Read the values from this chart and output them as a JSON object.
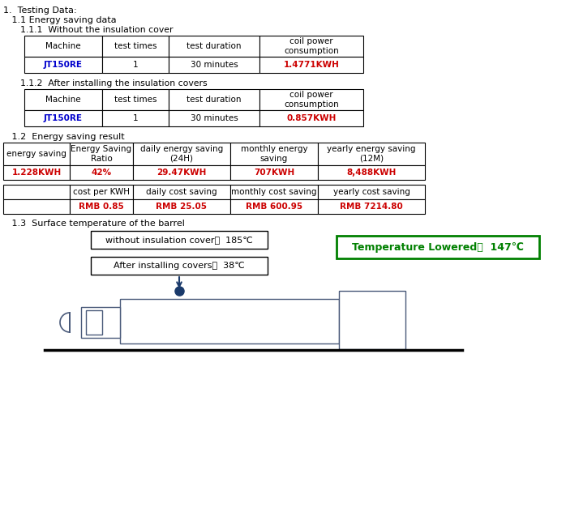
{
  "title_1": "1.  Testing Data:",
  "title_1_1": "   1.1 Energy saving data",
  "title_1_1_1": "      1.1.1  Without the insulation cover",
  "table1_headers": [
    "Machine",
    "test times",
    "test duration",
    "coil power\nconsumption"
  ],
  "table1_data": [
    [
      "JT150RE",
      "1",
      "30 minutes",
      "1.4771KWH"
    ]
  ],
  "table1_blue_cols": [
    0
  ],
  "table1_red_cols": [
    3
  ],
  "title_1_1_2": "      1.1.2  After installing the insulation covers",
  "table2_headers": [
    "Machine",
    "test times",
    "test duration",
    "coil power\nconsumption"
  ],
  "table2_data": [
    [
      "JT150RE",
      "1",
      "30 minutes",
      "0.857KWH"
    ]
  ],
  "table2_blue_cols": [
    0
  ],
  "table2_red_cols": [
    3
  ],
  "title_1_2": "   1.2  Energy saving result",
  "table3_headers": [
    "energy saving",
    "Energy Saving\nRatio",
    "daily energy saving\n(24H)",
    "monthly energy\nsaving",
    "yearly energy saving\n(12M)"
  ],
  "table3_data": [
    [
      "1.228KWH",
      "42%",
      "29.47KWH",
      "707KWH",
      "8,488KWH"
    ]
  ],
  "table3_red_cols": [
    0,
    1,
    2,
    3,
    4
  ],
  "table4_headers": [
    "",
    "cost per KWH",
    "daily cost saving",
    "monthly cost saving",
    "yearly cost saving"
  ],
  "table4_data": [
    [
      "",
      "RMB 0.85",
      "RMB 25.05",
      "RMB 600.95",
      "RMB 7214.80"
    ]
  ],
  "table4_red_cols": [
    1,
    2,
    3,
    4
  ],
  "title_1_3": "   1.3  Surface temperature of the barrel",
  "bg_color": "#ffffff",
  "text_color": "#000000",
  "blue_color": "#0000cc",
  "red_color": "#cc0000",
  "green_color": "#008000",
  "border_color": "#000000",
  "dark_blue": "#1a3a6b"
}
